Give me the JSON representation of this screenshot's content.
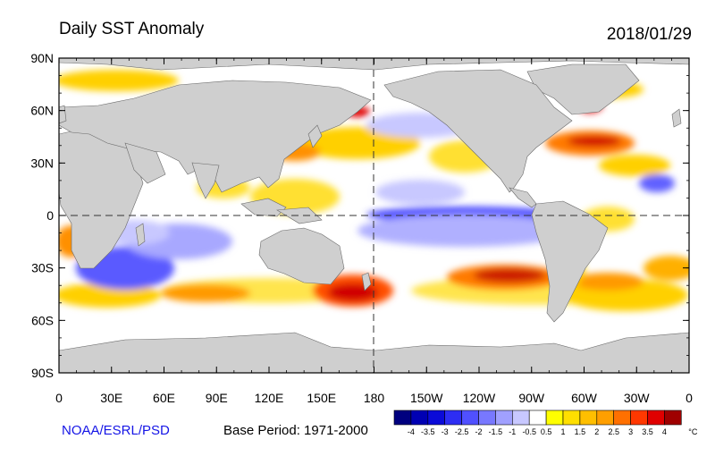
{
  "header": {
    "title": "Daily SST Anomaly",
    "date": "2018/01/29"
  },
  "footer": {
    "credit": "NOAA/ESRL/PSD",
    "base_period": "Base Period: 1971-2000"
  },
  "map": {
    "projection": "equirectangular",
    "lon_range": [
      0,
      360
    ],
    "lat_range": [
      -90,
      90
    ],
    "y_ticks": [
      "90N",
      "60N",
      "30N",
      "0",
      "30S",
      "60S",
      "90S"
    ],
    "x_ticks": [
      "0",
      "30E",
      "60E",
      "90E",
      "120E",
      "150E",
      "180",
      "150W",
      "120W",
      "90W",
      "60W",
      "30W",
      "0"
    ],
    "land_color": "#cfcfcf"
  },
  "colorbar": {
    "unit": "°C",
    "labels": [
      "-4",
      "-3.5",
      "-3",
      "-2.5",
      "-2",
      "-1.5",
      "-1",
      "-0.5",
      "0.5",
      "1",
      "1.5",
      "2",
      "2.5",
      "3",
      "3.5",
      "4"
    ],
    "colors": [
      "#00007f",
      "#0000b3",
      "#0a0ad8",
      "#2d2df3",
      "#5050ff",
      "#7878ff",
      "#a0a0ff",
      "#c8c8ff",
      "#ffffff",
      "#ffff00",
      "#ffdf00",
      "#ffbf00",
      "#ff9f00",
      "#ff7000",
      "#ff3800",
      "#e00000",
      "#9f0000"
    ]
  }
}
